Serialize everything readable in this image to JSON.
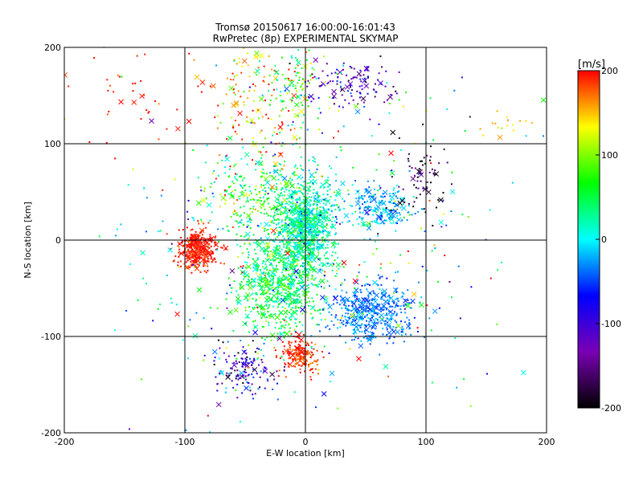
{
  "chart_data": {
    "type": "scatter",
    "title": "Tromsø 20150617 16:00:00-16:01:43",
    "subtitle": "RwPretec (8p) EXPERIMENTAL SKYMAP",
    "xlabel": "E-W location [km]",
    "ylabel": "N-S location [km]",
    "xlim": [
      -200,
      200
    ],
    "ylim": [
      -200,
      200
    ],
    "xticks": [
      "-200",
      "-100",
      "0",
      "100",
      "200"
    ],
    "yticks": [
      "-200",
      "-100",
      "0",
      "100",
      "200"
    ],
    "grid": true,
    "colorbar": {
      "label": "[m/s]",
      "range": [
        -200,
        200
      ],
      "ticks": [
        "200",
        "100",
        "0",
        "-100",
        "-200"
      ],
      "colors": [
        "#000000",
        "#7a00b4",
        "#0000ff",
        "#00ffff",
        "#00ff00",
        "#ffff00",
        "#ff0000"
      ]
    },
    "markers": [
      "dot",
      "cross"
    ],
    "clusters": [
      {
        "x": 0,
        "y": 15,
        "sx": 12,
        "sy": 25,
        "v": 15,
        "sv": 25,
        "n": 900
      },
      {
        "x": -20,
        "y": -45,
        "sx": 18,
        "sy": 28,
        "v": 50,
        "sv": 30,
        "n": 700
      },
      {
        "x": -40,
        "y": 40,
        "sx": 25,
        "sy": 25,
        "v": 60,
        "sv": 40,
        "n": 300
      },
      {
        "x": -90,
        "y": -10,
        "sx": 8,
        "sy": 10,
        "v": 195,
        "sv": 10,
        "n": 350
      },
      {
        "x": 55,
        "y": -75,
        "sx": 18,
        "sy": 15,
        "v": -35,
        "sv": 15,
        "n": 450
      },
      {
        "x": 60,
        "y": 35,
        "sx": 15,
        "sy": 12,
        "v": -20,
        "sv": 20,
        "n": 200
      },
      {
        "x": 35,
        "y": 160,
        "sx": 18,
        "sy": 12,
        "v": -120,
        "sv": 40,
        "n": 120
      },
      {
        "x": -5,
        "y": -120,
        "sx": 8,
        "sy": 10,
        "v": 190,
        "sv": 15,
        "n": 180
      },
      {
        "x": -50,
        "y": -135,
        "sx": 15,
        "sy": 15,
        "v": -100,
        "sv": 60,
        "n": 150
      },
      {
        "x": -40,
        "y": 140,
        "sx": 22,
        "sy": 35,
        "v": 170,
        "sv": 40,
        "n": 150
      },
      {
        "x": -10,
        "y": 160,
        "sx": 15,
        "sy": 25,
        "v": 60,
        "sv": 40,
        "n": 100
      },
      {
        "x": 95,
        "y": 60,
        "sx": 12,
        "sy": 25,
        "v": -180,
        "sv": 30,
        "n": 70
      },
      {
        "x": -140,
        "y": 150,
        "sx": 25,
        "sy": 30,
        "v": 195,
        "sv": 15,
        "n": 40
      },
      {
        "x": 0,
        "y": 0,
        "sx": 90,
        "sy": 90,
        "v": 30,
        "sv": 90,
        "n": 400
      },
      {
        "x": 165,
        "y": 120,
        "sx": 12,
        "sy": 8,
        "v": 140,
        "sv": 15,
        "n": 15
      }
    ]
  }
}
